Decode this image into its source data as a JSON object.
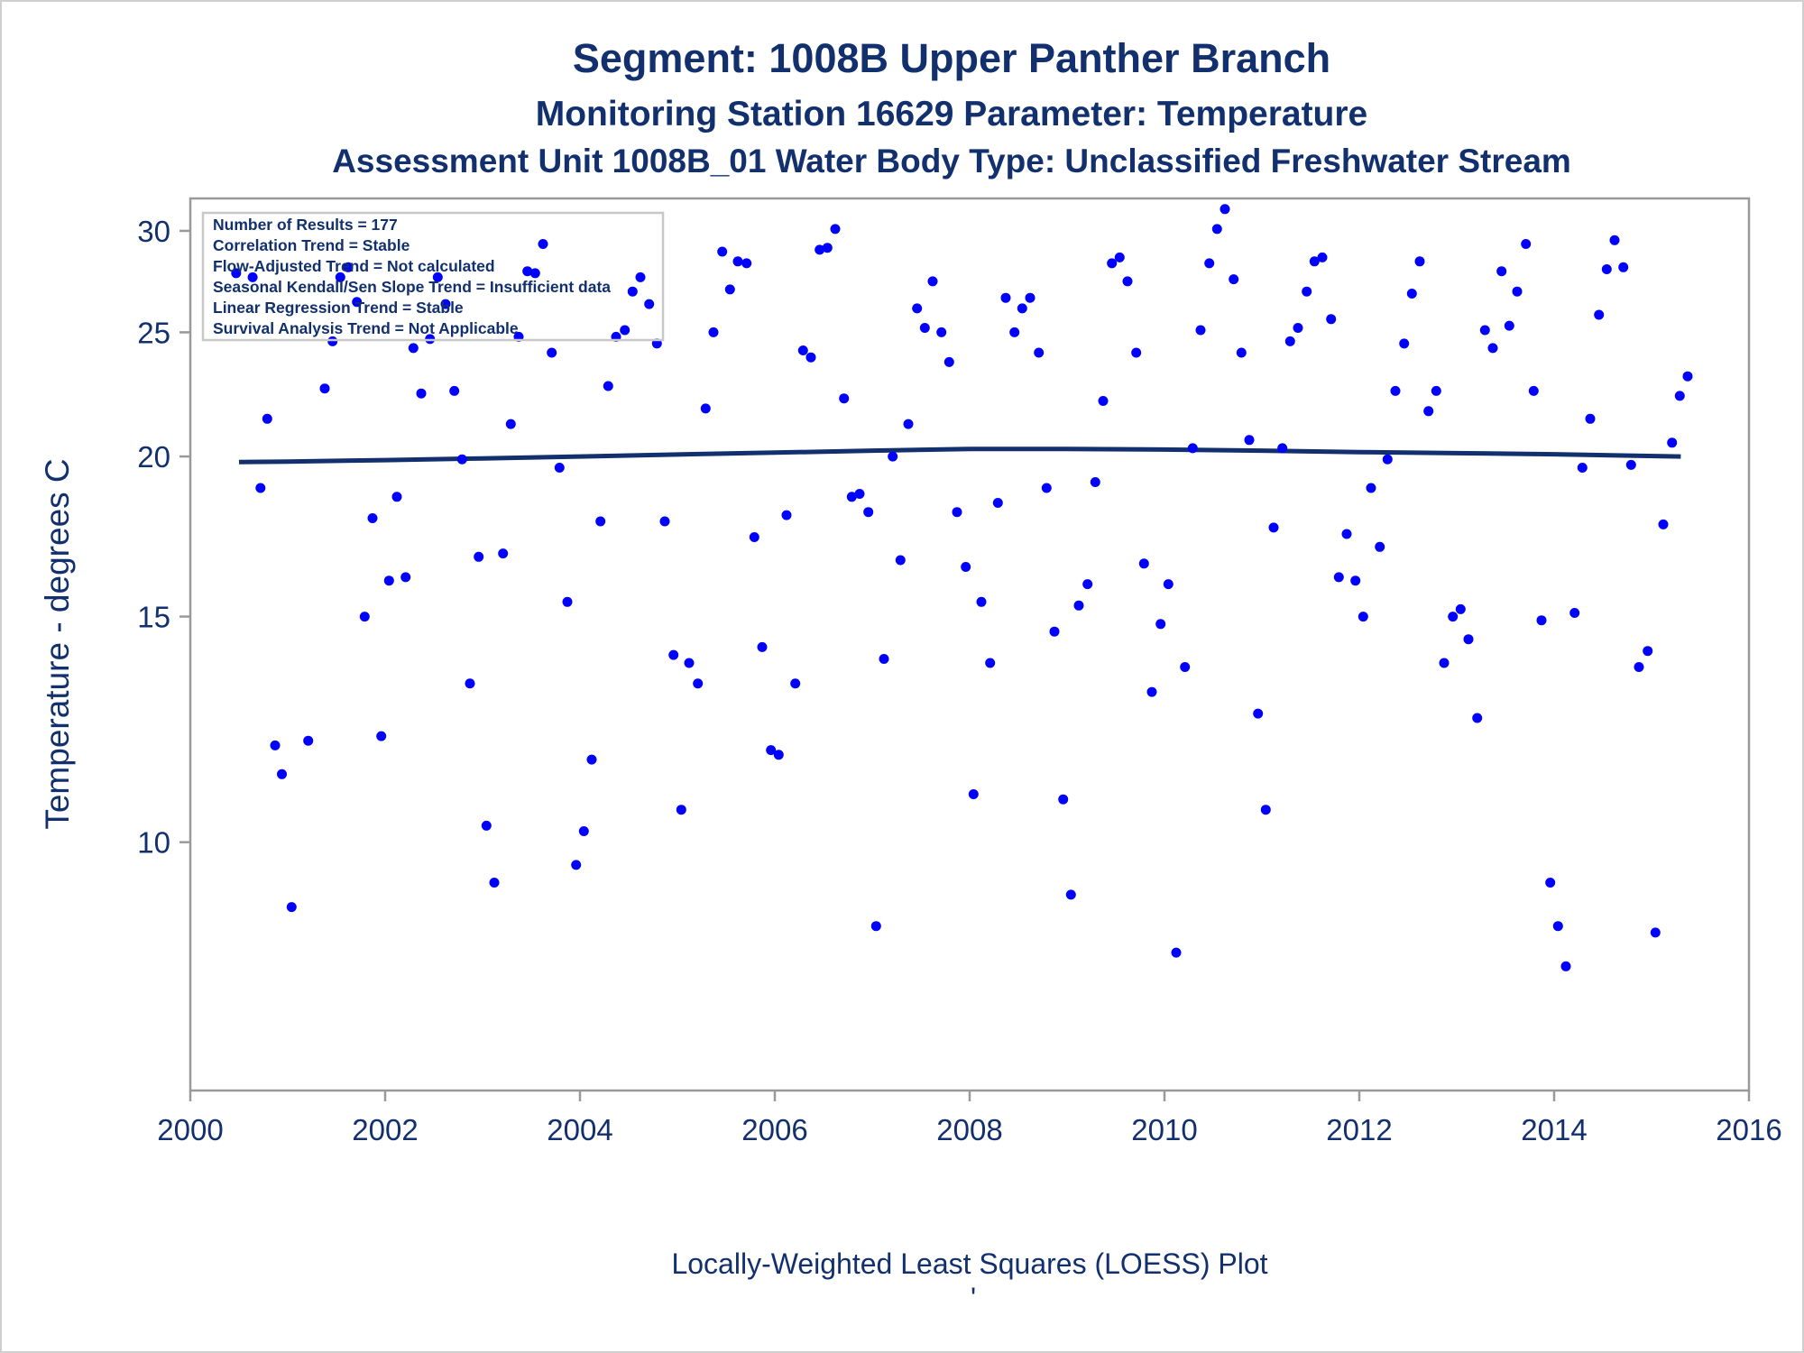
{
  "chart_data": {
    "type": "scatter",
    "title": "Segment: 1008B  Upper Panther Branch",
    "subtitle": "Monitoring Station 16629 Parameter: Temperature",
    "subtitle2": "Assessment Unit 1008B_01   Water Body Type: Unclassified Freshwater Stream",
    "xlabel": "",
    "ylabel": "Temperature - degrees C",
    "footnote": "Locally-Weighted Least Squares (LOESS) Plot",
    "footnote_mark": "'",
    "x_ticks": [
      "2000",
      "2002",
      "2004",
      "2006",
      "2008",
      "2010",
      "2012",
      "2014",
      "2016"
    ],
    "y_ticks": [
      "10",
      "15",
      "20",
      "25",
      "30"
    ],
    "xlim": [
      2000,
      2016
    ],
    "ylim": [
      6.4,
      31.8
    ],
    "y_scale": "log",
    "grid": false,
    "legend_position": "top-left",
    "stats_box": [
      "Number of Results = 177",
      "Correlation Trend = Stable",
      "Flow-Adjusted Trend = Not calculated",
      "Seasonal Kendall/Sen Slope Trend = Insufficient data",
      "Linear Regression Trend = Stable",
      "Survival Analysis Trend = Not Applicable"
    ],
    "colors": {
      "points": "#0000ff",
      "loess": "#12306e",
      "text": "#12306e",
      "frame": "#999999"
    },
    "loess": {
      "x": [
        2000.5,
        2001.0,
        2002.0,
        2003.0,
        2004.0,
        2005.0,
        2006.0,
        2007.0,
        2008.0,
        2009.0,
        2010.0,
        2011.0,
        2012.0,
        2013.0,
        2014.0,
        2015.3
      ],
      "y": [
        19.8,
        19.82,
        19.87,
        19.93,
        20.0,
        20.07,
        20.14,
        20.21,
        20.27,
        20.27,
        20.25,
        20.21,
        20.16,
        20.12,
        20.08,
        20.0
      ]
    },
    "points": {
      "x": [
        2000.47,
        2000.64,
        2000.72,
        2000.79,
        2000.87,
        2000.94,
        2001.04,
        2001.21,
        2001.38,
        2001.46,
        2001.54,
        2001.62,
        2001.71,
        2001.79,
        2001.87,
        2001.96,
        2002.04,
        2002.12,
        2002.21,
        2002.29,
        2002.37,
        2002.46,
        2002.54,
        2002.62,
        2002.71,
        2002.79,
        2002.87,
        2002.96,
        2003.04,
        2003.12,
        2003.21,
        2003.29,
        2003.37,
        2003.46,
        2003.54,
        2003.62,
        2003.71,
        2003.79,
        2003.87,
        2003.96,
        2004.04,
        2004.12,
        2004.21,
        2004.29,
        2004.37,
        2004.46,
        2004.54,
        2004.62,
        2004.71,
        2004.79,
        2004.87,
        2004.96,
        2005.04,
        2005.12,
        2005.21,
        2005.29,
        2005.37,
        2005.46,
        2005.54,
        2005.62,
        2005.71,
        2005.79,
        2005.87,
        2005.96,
        2006.04,
        2006.12,
        2006.21,
        2006.29,
        2006.37,
        2006.46,
        2006.54,
        2006.62,
        2006.71,
        2006.79,
        2006.87,
        2006.96,
        2007.04,
        2007.12,
        2007.21,
        2007.29,
        2007.37,
        2007.46,
        2007.54,
        2007.62,
        2007.71,
        2007.79,
        2007.87,
        2007.96,
        2008.04,
        2008.12,
        2008.21,
        2008.29,
        2008.37,
        2008.46,
        2008.54,
        2008.62,
        2008.71,
        2008.79,
        2008.87,
        2008.96,
        2009.04,
        2009.12,
        2009.21,
        2009.29,
        2009.37,
        2009.46,
        2009.54,
        2009.62,
        2009.71,
        2009.79,
        2009.87,
        2009.96,
        2010.04,
        2010.12,
        2010.21,
        2010.29,
        2010.37,
        2010.46,
        2010.54,
        2010.62,
        2010.71,
        2010.79,
        2010.87,
        2010.96,
        2011.04,
        2011.12,
        2011.21,
        2011.29,
        2011.37,
        2011.46,
        2011.54,
        2011.62,
        2011.71,
        2011.79,
        2011.87,
        2011.96,
        2012.04,
        2012.12,
        2012.21,
        2012.29,
        2012.37,
        2012.46,
        2012.54,
        2012.62,
        2012.71,
        2012.79,
        2012.87,
        2012.96,
        2013.04,
        2013.12,
        2013.21,
        2013.29,
        2013.37,
        2013.46,
        2013.54,
        2013.62,
        2013.71,
        2013.79,
        2013.87,
        2013.96,
        2014.04,
        2014.12,
        2014.21,
        2014.29,
        2014.37,
        2014.46,
        2014.54,
        2014.62,
        2014.71,
        2014.79,
        2014.87,
        2014.96,
        2015.04,
        2015.12,
        2015.21,
        2015.29,
        2015.37
      ],
      "y": [
        27.8,
        27.6,
        18.9,
        21.4,
        11.9,
        11.3,
        8.9,
        12.0,
        22.6,
        24.6,
        27.6,
        28.1,
        26.4,
        15.0,
        17.9,
        12.1,
        16.0,
        18.6,
        16.1,
        24.3,
        22.4,
        24.7,
        27.6,
        26.3,
        22.5,
        19.9,
        13.3,
        16.7,
        10.3,
        9.3,
        16.8,
        21.2,
        24.8,
        27.9,
        27.8,
        29.3,
        24.1,
        19.6,
        15.4,
        9.6,
        10.2,
        11.6,
        17.8,
        22.7,
        24.8,
        25.1,
        26.9,
        27.6,
        26.3,
        24.5,
        17.8,
        14.0,
        10.6,
        13.8,
        13.3,
        21.8,
        25.0,
        28.9,
        27.0,
        28.4,
        28.3,
        17.3,
        14.2,
        11.8,
        11.7,
        18.0,
        13.3,
        24.2,
        23.9,
        29.0,
        29.1,
        30.1,
        22.2,
        18.6,
        18.7,
        18.1,
        8.6,
        13.9,
        20.0,
        16.6,
        21.2,
        26.1,
        25.2,
        27.4,
        25.0,
        23.7,
        18.1,
        16.4,
        10.9,
        15.4,
        13.8,
        18.4,
        26.6,
        25.0,
        26.1,
        26.6,
        24.1,
        18.9,
        14.6,
        10.8,
        9.1,
        15.3,
        15.9,
        19.1,
        22.1,
        28.3,
        28.6,
        27.4,
        24.1,
        16.5,
        13.1,
        14.8,
        15.9,
        8.2,
        13.7,
        20.3,
        25.1,
        28.3,
        30.1,
        31.2,
        27.5,
        24.1,
        20.6,
        12.6,
        10.6,
        17.6,
        20.3,
        24.6,
        25.2,
        26.9,
        28.4,
        28.6,
        25.6,
        16.1,
        17.4,
        16.0,
        15.0,
        18.9,
        17.0,
        19.9,
        22.5,
        24.5,
        26.8,
        28.4,
        21.7,
        22.5,
        13.8,
        15.0,
        15.2,
        14.4,
        12.5,
        25.1,
        24.3,
        27.9,
        25.3,
        26.9,
        29.3,
        22.5,
        14.9,
        9.3,
        8.6,
        8.0,
        15.1,
        19.6,
        21.4,
        25.8,
        28.0,
        29.5,
        28.1,
        19.7,
        13.7,
        14.1,
        8.5,
        17.7,
        20.5,
        22.3,
        23.1
      ]
    }
  }
}
